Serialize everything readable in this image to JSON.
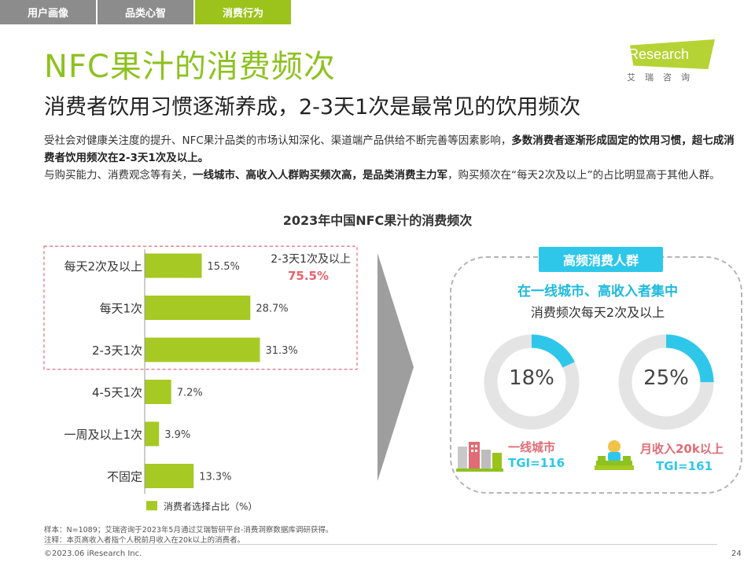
{
  "tabs": [
    {
      "label": "用户画像",
      "active": false
    },
    {
      "label": "品类心智",
      "active": false
    },
    {
      "label": "消费行为",
      "active": true
    }
  ],
  "title": "NFC果汁的消费频次",
  "subtitle": "消费者饮用习惯逐渐养成，2-3天1次是最常见的饮用频次",
  "logo": {
    "name": "iResearch",
    "sub": "艾瑞咨询"
  },
  "description": {
    "p1_normal": "受社会对健康关注度的提升、NFC果汁品类的市场认知深化、渠道端产品供给不断完善等因素影响，",
    "p1_bold": "多数消费者逐渐形成固定的饮用习惯，超七成消费者饮用频次在2-3天1次及以上。",
    "p2_normal_a": "与购买能力、消费观念等有关，",
    "p2_bold": "一线城市、高收入人群购买频次高，是品类消费主力军",
    "p2_normal_b": "，购买频次在“每天2次及以上”的占比明显高于其他人群。"
  },
  "chart_data": {
    "type": "bar",
    "orientation": "horizontal",
    "title": "2023年中国NFC果汁的消费频次",
    "categories": [
      "每天2次及以上",
      "每天1次",
      "2-3天1次",
      "4-5天1次",
      "一周及以上1次",
      "不固定"
    ],
    "values": [
      15.5,
      28.7,
      31.3,
      7.2,
      3.9,
      13.3
    ],
    "value_labels": [
      "15.5%",
      "28.7%",
      "31.3%",
      "7.2%",
      "3.9%",
      "13.3%"
    ],
    "legend": "消费者选择占比（%）",
    "xlim": [
      0,
      40
    ],
    "bar_color": "#a6c924",
    "annotation": {
      "label": "2-3天1次及以上",
      "value": "75.5%",
      "covers": [
        0,
        1,
        2
      ]
    }
  },
  "panel": {
    "tag": "高频消费人群",
    "headline": "在一线城市、高收入者集中",
    "subline": "消费频次每天2次及以上",
    "donuts": [
      {
        "value": 18,
        "label": "18%",
        "group": "一线城市",
        "tgi": "TGI=116"
      },
      {
        "value": 25,
        "label": "25%",
        "group": "月收入20k以上",
        "tgi": "TGI=161"
      }
    ],
    "donut_colors": {
      "accent": "#2ec7ea",
      "track": "#e4e4e4"
    }
  },
  "footnotes": [
    "样本：N=1089；艾瑞咨询于2023年5月通过艾瑞智研平台-消费洞察数据库调研获得。",
    "注释：本页高收入者指个人税前月收入在20k以上的消费者。"
  ],
  "copyright": "©2023.06 iResearch Inc.",
  "page_number": "24"
}
